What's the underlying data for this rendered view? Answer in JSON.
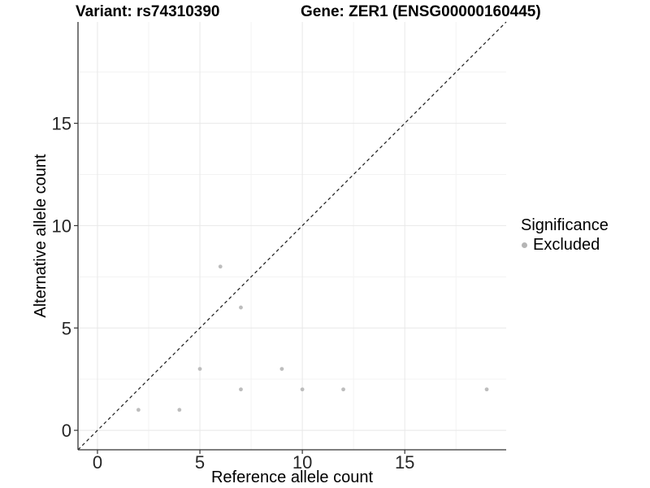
{
  "header": {
    "variant_title": "Variant: rs74310390",
    "gene_title": "Gene: ZER1 (ENSG00000160445)"
  },
  "chart_data": {
    "type": "scatter",
    "title": "Variant: rs74310390 / Gene: ZER1 (ENSG00000160445)",
    "xlabel": "Reference allele count",
    "ylabel": "Alternative allele count",
    "xlim": [
      -0.95,
      19.95
    ],
    "ylim": [
      -0.95,
      19.95
    ],
    "x_ticks": [
      0,
      5,
      10,
      15
    ],
    "y_ticks": [
      0,
      5,
      10,
      15
    ],
    "x_minor_ticks": [
      2.5,
      7.5,
      12.5,
      17.5
    ],
    "y_minor_ticks": [
      2.5,
      7.5,
      12.5,
      17.5
    ],
    "grid": true,
    "series": [
      {
        "name": "Excluded",
        "color": "#bdbdbd",
        "points": [
          {
            "x": 2,
            "y": 1
          },
          {
            "x": 4,
            "y": 1
          },
          {
            "x": 5,
            "y": 3
          },
          {
            "x": 6,
            "y": 8
          },
          {
            "x": 7,
            "y": 6
          },
          {
            "x": 7,
            "y": 2
          },
          {
            "x": 9,
            "y": 3
          },
          {
            "x": 10,
            "y": 2
          },
          {
            "x": 12,
            "y": 2
          },
          {
            "x": 19,
            "y": 2
          }
        ]
      }
    ],
    "reference_line": {
      "type": "identity",
      "from": [
        -0.95,
        -0.95
      ],
      "to": [
        19.95,
        19.95
      ],
      "style": "dashed",
      "color": "#1a1a1a"
    },
    "legend": {
      "position": "right",
      "title": "Significance",
      "items": [
        {
          "label": "Excluded",
          "color": "#b5b5b5"
        }
      ]
    },
    "colors": {
      "point": "#bdbdbd",
      "grid_major": "#e8e8e8",
      "grid_minor": "#f3f3f3",
      "axis_line": "#333333",
      "tick_label": "#262626"
    }
  }
}
